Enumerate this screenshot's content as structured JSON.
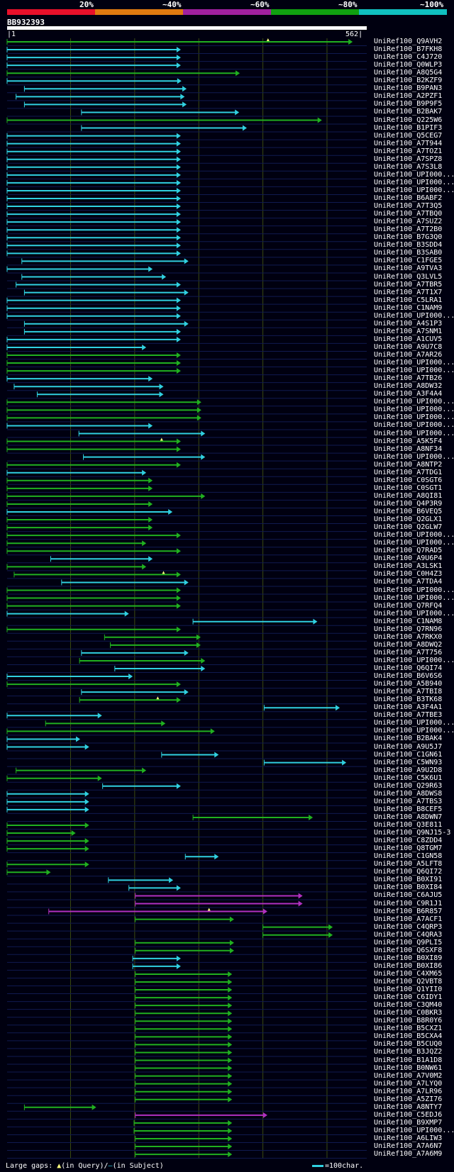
{
  "query_id": "BB932393",
  "query_start": "1",
  "query_end": "562",
  "scale_labels": [
    "20%",
    "~40%",
    "~60%",
    "~80%",
    "~100%"
  ],
  "legend_colors": [
    "#e8102a",
    "#e07a10",
    "#a020a0",
    "#10a010",
    "#10c0c0"
  ],
  "footer": {
    "gaps_label": "Large gaps:",
    "query_gap_text": "(in Query)/",
    "subject_gap_text": "(in Subject)",
    "scale_text": "=100char."
  },
  "chart_data": {
    "type": "alignment-overview",
    "x_range": [
      1,
      562
    ],
    "color_key": {
      "c": "#30d0e0",
      "g": "#20b020",
      "m": "#b030c0"
    },
    "hits": [
      {
        "name": "UniRef100_Q9AVH2",
        "start": 1,
        "end": 540,
        "color": "g",
        "marks": [
          408
        ]
      },
      {
        "name": "UniRef100_B7FKH8",
        "start": 1,
        "end": 272,
        "color": "c"
      },
      {
        "name": "UniRef100_C4J720",
        "start": 1,
        "end": 272,
        "color": "c"
      },
      {
        "name": "UniRef100_Q0WLP3",
        "start": 1,
        "end": 272,
        "color": "c"
      },
      {
        "name": "UniRef100_A8Q5G4",
        "start": 1,
        "end": 364,
        "color": "g"
      },
      {
        "name": "UniRef100_B2KZF9",
        "start": 1,
        "end": 273,
        "color": "c"
      },
      {
        "name": "UniRef100_B9PAN3",
        "start": 28,
        "end": 281,
        "color": "c"
      },
      {
        "name": "UniRef100_A2PZF1",
        "start": 15,
        "end": 278,
        "color": "c"
      },
      {
        "name": "UniRef100_B9P9F5",
        "start": 28,
        "end": 281,
        "color": "c"
      },
      {
        "name": "UniRef100_B2BAK7",
        "start": 117,
        "end": 363,
        "color": "c"
      },
      {
        "name": "UniRef100_Q225W6",
        "start": 1,
        "end": 492,
        "color": "g"
      },
      {
        "name": "UniRef100_B1PIF3",
        "start": 117,
        "end": 375,
        "color": "c"
      },
      {
        "name": "UniRef100_Q5CEG7",
        "start": 1,
        "end": 272,
        "color": "c"
      },
      {
        "name": "UniRef100_A7T944",
        "start": 1,
        "end": 272,
        "color": "c"
      },
      {
        "name": "UniRef100_A7TOZ1",
        "start": 1,
        "end": 272,
        "color": "c"
      },
      {
        "name": "UniRef100_A7SPZ8",
        "start": 1,
        "end": 272,
        "color": "c"
      },
      {
        "name": "UniRef100_A7S3L8",
        "start": 1,
        "end": 272,
        "color": "c"
      },
      {
        "name": "UniRef100_UPI000...",
        "start": 1,
        "end": 272,
        "color": "c"
      },
      {
        "name": "UniRef100_UPI000...",
        "start": 1,
        "end": 272,
        "color": "c"
      },
      {
        "name": "UniRef100_UPI000...",
        "start": 1,
        "end": 272,
        "color": "c"
      },
      {
        "name": "UniRef100_B6ABF2",
        "start": 1,
        "end": 272,
        "color": "c"
      },
      {
        "name": "UniRef100_A7T3Q5",
        "start": 1,
        "end": 272,
        "color": "c"
      },
      {
        "name": "UniRef100_A7TBQ0",
        "start": 1,
        "end": 272,
        "color": "c"
      },
      {
        "name": "UniRef100_A7SUZ2",
        "start": 1,
        "end": 272,
        "color": "c"
      },
      {
        "name": "UniRef100_A7T2B0",
        "start": 1,
        "end": 272,
        "color": "c"
      },
      {
        "name": "UniRef100_B7G3Q0",
        "start": 1,
        "end": 272,
        "color": "c"
      },
      {
        "name": "UniRef100_B3SDD4",
        "start": 1,
        "end": 272,
        "color": "c"
      },
      {
        "name": "UniRef100_B3SAB0",
        "start": 1,
        "end": 272,
        "color": "c"
      },
      {
        "name": "UniRef100_C1FGE5",
        "start": 24,
        "end": 284,
        "color": "c"
      },
      {
        "name": "UniRef100_A9TVA3",
        "start": 1,
        "end": 228,
        "color": "c"
      },
      {
        "name": "UniRef100_Q3LVL5",
        "start": 24,
        "end": 249,
        "color": "c"
      },
      {
        "name": "UniRef100_A7TBR5",
        "start": 15,
        "end": 272,
        "color": "c"
      },
      {
        "name": "UniRef100_A7T1X7",
        "start": 28,
        "end": 284,
        "color": "c"
      },
      {
        "name": "UniRef100_C5LRA1",
        "start": 1,
        "end": 272,
        "color": "c"
      },
      {
        "name": "UniRef100_C1NAM9",
        "start": 1,
        "end": 272,
        "color": "c"
      },
      {
        "name": "UniRef100_UPI000...",
        "start": 1,
        "end": 272,
        "color": "c"
      },
      {
        "name": "UniRef100_A4S1P3",
        "start": 28,
        "end": 284,
        "color": "c"
      },
      {
        "name": "UniRef100_A7SNM1",
        "start": 28,
        "end": 272,
        "color": "c"
      },
      {
        "name": "UniRef100_A1CUV5",
        "start": 1,
        "end": 272,
        "color": "c"
      },
      {
        "name": "UniRef100_A9U7C8",
        "start": 1,
        "end": 218,
        "color": "c"
      },
      {
        "name": "UniRef100_A7AR26",
        "start": 1,
        "end": 272,
        "color": "g"
      },
      {
        "name": "UniRef100_UPI000...",
        "start": 1,
        "end": 272,
        "color": "g"
      },
      {
        "name": "UniRef100_UPI000...",
        "start": 1,
        "end": 272,
        "color": "g"
      },
      {
        "name": "UniRef100_A7TB26",
        "start": 1,
        "end": 228,
        "color": "c"
      },
      {
        "name": "UniRef100_A8DW32",
        "start": 12,
        "end": 245,
        "color": "c"
      },
      {
        "name": "UniRef100_A3F4A4",
        "start": 48,
        "end": 245,
        "color": "c"
      },
      {
        "name": "UniRef100_UPI000...",
        "start": 1,
        "end": 304,
        "color": "g"
      },
      {
        "name": "UniRef100_UPI000...",
        "start": 1,
        "end": 304,
        "color": "g"
      },
      {
        "name": "UniRef100_UPI000...",
        "start": 1,
        "end": 304,
        "color": "g"
      },
      {
        "name": "UniRef100_UPI000...",
        "start": 1,
        "end": 228,
        "color": "c"
      },
      {
        "name": "UniRef100_UPI000...",
        "start": 113,
        "end": 310,
        "color": "c"
      },
      {
        "name": "UniRef100_A5K5F4",
        "start": 1,
        "end": 272,
        "color": "g",
        "marks": [
          242
        ]
      },
      {
        "name": "UniRef100_A8NF34",
        "start": 1,
        "end": 272,
        "color": "g"
      },
      {
        "name": "UniRef100_UPI000...",
        "start": 120,
        "end": 310,
        "color": "c"
      },
      {
        "name": "UniRef100_A8NTP2",
        "start": 1,
        "end": 272,
        "color": "g"
      },
      {
        "name": "UniRef100_A7TDG1",
        "start": 1,
        "end": 218,
        "color": "c"
      },
      {
        "name": "UniRef100_C0SGT6",
        "start": 1,
        "end": 228,
        "color": "g"
      },
      {
        "name": "UniRef100_C0SGT1",
        "start": 1,
        "end": 228,
        "color": "g"
      },
      {
        "name": "UniRef100_A8QI81",
        "start": 1,
        "end": 310,
        "color": "g"
      },
      {
        "name": "UniRef100_Q4P3R9",
        "start": 1,
        "end": 228,
        "color": "g"
      },
      {
        "name": "UniRef100_B6VEQ5",
        "start": 1,
        "end": 259,
        "color": "c"
      },
      {
        "name": "UniRef100_Q2GLX1",
        "start": 1,
        "end": 228,
        "color": "g"
      },
      {
        "name": "UniRef100_Q2GLW7",
        "start": 1,
        "end": 228,
        "color": "g"
      },
      {
        "name": "UniRef100_UPI000...",
        "start": 1,
        "end": 272,
        "color": "g"
      },
      {
        "name": "UniRef100_UPI000...",
        "start": 1,
        "end": 218,
        "color": "g"
      },
      {
        "name": "UniRef100_Q7RAD5",
        "start": 1,
        "end": 272,
        "color": "g"
      },
      {
        "name": "UniRef100_A9U6P4",
        "start": 69,
        "end": 228,
        "color": "c"
      },
      {
        "name": "UniRef100_A3LSK1",
        "start": 1,
        "end": 218,
        "color": "g"
      },
      {
        "name": "UniRef100_C0H4Z3",
        "start": 12,
        "end": 272,
        "color": "g",
        "marks": [
          245
        ]
      },
      {
        "name": "UniRef100_A7TDA4",
        "start": 86,
        "end": 284,
        "color": "c"
      },
      {
        "name": "UniRef100_UPI000...",
        "start": 1,
        "end": 272,
        "color": "g"
      },
      {
        "name": "UniRef100_UPI000...",
        "start": 1,
        "end": 272,
        "color": "g"
      },
      {
        "name": "UniRef100_Q7RFQ4",
        "start": 1,
        "end": 272,
        "color": "g"
      },
      {
        "name": "UniRef100_UPI000...",
        "start": 1,
        "end": 191,
        "color": "c"
      },
      {
        "name": "UniRef100_C1NAM8",
        "start": 291,
        "end": 485,
        "color": "c"
      },
      {
        "name": "UniRef100_Q7RN96",
        "start": 1,
        "end": 272,
        "color": "g"
      },
      {
        "name": "UniRef100_A7RKX0",
        "start": 153,
        "end": 303,
        "color": "g"
      },
      {
        "name": "UniRef100_A8DWQ2",
        "start": 162,
        "end": 303,
        "color": "g"
      },
      {
        "name": "UniRef100_A7T756",
        "start": 117,
        "end": 284,
        "color": "c"
      },
      {
        "name": "UniRef100_UPI000...",
        "start": 114,
        "end": 310,
        "color": "g"
      },
      {
        "name": "UniRef100_Q6QI74",
        "start": 169,
        "end": 310,
        "color": "c"
      },
      {
        "name": "UniRef100_B6V6S6",
        "start": 1,
        "end": 197,
        "color": "c"
      },
      {
        "name": "UniRef100_A5B940",
        "start": 1,
        "end": 272,
        "color": "g"
      },
      {
        "name": "UniRef100_A7TBI8",
        "start": 117,
        "end": 284,
        "color": "c"
      },
      {
        "name": "UniRef100_B3TK68",
        "start": 114,
        "end": 272,
        "color": "g",
        "marks": [
          236
        ]
      },
      {
        "name": "UniRef100_A3F4A1",
        "start": 402,
        "end": 520,
        "color": "c"
      },
      {
        "name": "UniRef100_A7TBE3",
        "start": 1,
        "end": 149,
        "color": "c"
      },
      {
        "name": "UniRef100_UPI000...",
        "start": 61,
        "end": 248,
        "color": "g"
      },
      {
        "name": "UniRef100_UPI000...",
        "start": 1,
        "end": 325,
        "color": "g"
      },
      {
        "name": "UniRef100_B2BAK4",
        "start": 1,
        "end": 115,
        "color": "c"
      },
      {
        "name": "UniRef100_A9U5J7",
        "start": 1,
        "end": 129,
        "color": "c"
      },
      {
        "name": "UniRef100_C1GN61",
        "start": 242,
        "end": 331,
        "color": "c"
      },
      {
        "name": "UniRef100_C5WN93",
        "start": 402,
        "end": 530,
        "color": "c"
      },
      {
        "name": "UniRef100_A9U2D8",
        "start": 15,
        "end": 218,
        "color": "g"
      },
      {
        "name": "UniRef100_C5K6U1",
        "start": 1,
        "end": 149,
        "color": "g"
      },
      {
        "name": "UniRef100_Q29R63",
        "start": 150,
        "end": 272,
        "color": "c"
      },
      {
        "name": "UniRef100_A8DWS8",
        "start": 1,
        "end": 129,
        "color": "c"
      },
      {
        "name": "UniRef100_A7TBS3",
        "start": 1,
        "end": 129,
        "color": "c"
      },
      {
        "name": "UniRef100_B8CEF5",
        "start": 1,
        "end": 129,
        "color": "c"
      },
      {
        "name": "UniRef100_A8DWN7",
        "start": 291,
        "end": 478,
        "color": "g"
      },
      {
        "name": "UniRef100_Q3E811",
        "start": 1,
        "end": 129,
        "color": "g"
      },
      {
        "name": "UniRef100_Q9NJ15-3",
        "start": 1,
        "end": 108,
        "color": "g"
      },
      {
        "name": "UniRef100_C8ZDD4",
        "start": 1,
        "end": 129,
        "color": "g"
      },
      {
        "name": "UniRef100_Q8TGM7",
        "start": 1,
        "end": 129,
        "color": "g"
      },
      {
        "name": "UniRef100_C1GN58",
        "start": 279,
        "end": 331,
        "color": "c"
      },
      {
        "name": "UniRef100_A5LFT8",
        "start": 1,
        "end": 129,
        "color": "g"
      },
      {
        "name": "UniRef100_Q6QI72",
        "start": 1,
        "end": 69,
        "color": "g"
      },
      {
        "name": "UniRef100_B0XI91",
        "start": 159,
        "end": 260,
        "color": "c"
      },
      {
        "name": "UniRef100_B0XI84",
        "start": 191,
        "end": 272,
        "color": "c"
      },
      {
        "name": "UniRef100_C6AJU5",
        "start": 201,
        "end": 462,
        "color": "m"
      },
      {
        "name": "UniRef100_C9R1J1",
        "start": 201,
        "end": 462,
        "color": "m"
      },
      {
        "name": "UniRef100_B6R857",
        "start": 66,
        "end": 407,
        "color": "m",
        "marks": [
          316
        ]
      },
      {
        "name": "UniRef100_A7ACF1",
        "start": 201,
        "end": 355,
        "color": "g"
      },
      {
        "name": "UniRef100_C4QRP3",
        "start": 400,
        "end": 509,
        "color": "g"
      },
      {
        "name": "UniRef100_C4QRA3",
        "start": 400,
        "end": 509,
        "color": "g"
      },
      {
        "name": "UniRef100_Q9PLI5",
        "start": 201,
        "end": 355,
        "color": "g"
      },
      {
        "name": "UniRef100_Q6SXF8",
        "start": 201,
        "end": 355,
        "color": "g"
      },
      {
        "name": "UniRef100_B0XI89",
        "start": 197,
        "end": 272,
        "color": "c"
      },
      {
        "name": "UniRef100_B0XI86",
        "start": 197,
        "end": 272,
        "color": "c"
      },
      {
        "name": "UniRef100_C4XM65",
        "start": 201,
        "end": 352,
        "color": "g"
      },
      {
        "name": "UniRef100_Q2VBT8",
        "start": 201,
        "end": 352,
        "color": "g"
      },
      {
        "name": "UniRef100_Q1YII0",
        "start": 201,
        "end": 352,
        "color": "g"
      },
      {
        "name": "UniRef100_C6IDY1",
        "start": 201,
        "end": 352,
        "color": "g"
      },
      {
        "name": "UniRef100_C3QM40",
        "start": 201,
        "end": 352,
        "color": "g"
      },
      {
        "name": "UniRef100_C0BKR3",
        "start": 201,
        "end": 352,
        "color": "g"
      },
      {
        "name": "UniRef100_B8R0Y6",
        "start": 201,
        "end": 352,
        "color": "g"
      },
      {
        "name": "UniRef100_B5CXZ1",
        "start": 201,
        "end": 352,
        "color": "g"
      },
      {
        "name": "UniRef100_B5CXA4",
        "start": 201,
        "end": 352,
        "color": "g"
      },
      {
        "name": "UniRef100_B5CUQ0",
        "start": 201,
        "end": 352,
        "color": "g"
      },
      {
        "name": "UniRef100_B3JQZ2",
        "start": 201,
        "end": 352,
        "color": "g"
      },
      {
        "name": "UniRef100_B1A1D8",
        "start": 201,
        "end": 352,
        "color": "g"
      },
      {
        "name": "UniRef100_B0NW61",
        "start": 201,
        "end": 352,
        "color": "g"
      },
      {
        "name": "UniRef100_A7V0M2",
        "start": 201,
        "end": 352,
        "color": "g"
      },
      {
        "name": "UniRef100_A7LYQ0",
        "start": 201,
        "end": 352,
        "color": "g"
      },
      {
        "name": "UniRef100_A7LR96",
        "start": 201,
        "end": 352,
        "color": "g"
      },
      {
        "name": "UniRef100_A5ZI76",
        "start": 201,
        "end": 352,
        "color": "g"
      },
      {
        "name": "UniRef100_A8NTY7",
        "start": 28,
        "end": 140,
        "color": "g"
      },
      {
        "name": "UniRef100_C5EDJ6",
        "start": 201,
        "end": 407,
        "color": "m"
      },
      {
        "name": "UniRef100_B9XMP7",
        "start": 199,
        "end": 352,
        "color": "g"
      },
      {
        "name": "UniRef100_UPI000...",
        "start": 199,
        "end": 352,
        "color": "g"
      },
      {
        "name": "UniRef100_A6LIW3",
        "start": 201,
        "end": 352,
        "color": "g"
      },
      {
        "name": "UniRef100_A7A6N7",
        "start": 201,
        "end": 352,
        "color": "g"
      },
      {
        "name": "UniRef100_A7A6M9",
        "start": 201,
        "end": 352,
        "color": "g"
      }
    ]
  }
}
